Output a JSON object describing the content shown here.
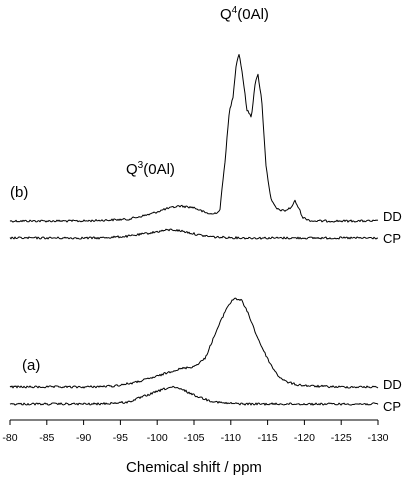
{
  "chart_data": {
    "type": "line",
    "xlabel": "Chemical shift / ppm",
    "ylabel": "",
    "xlim": [
      -80,
      -130
    ],
    "x_ticks": [
      "-80",
      "-85",
      "-90",
      "-95",
      "-100",
      "-105",
      "-110",
      "-115",
      "-120",
      "-125",
      "-130"
    ],
    "grid": false,
    "panels": [
      {
        "label": "(b)",
        "peak_labels": [
          {
            "text": "Q",
            "sup": "3",
            "rest": "(0Al)",
            "x": -102
          },
          {
            "text": "Q",
            "sup": "4",
            "rest": "(0Al)",
            "x": -111
          }
        ],
        "series": [
          {
            "name": "DD",
            "relative_intensity": [
              [
                -80,
                0.0
              ],
              [
                -90,
                0.0
              ],
              [
                -96,
                0.01
              ],
              [
                -99,
                0.04
              ],
              [
                -101,
                0.07
              ],
              [
                -103,
                0.09
              ],
              [
                -105,
                0.08
              ],
              [
                -106.5,
                0.05
              ],
              [
                -107.5,
                0.04
              ],
              [
                -108.5,
                0.06
              ],
              [
                -109.2,
                0.35
              ],
              [
                -109.8,
                0.65
              ],
              [
                -110.3,
                0.74
              ],
              [
                -110.7,
                0.92
              ],
              [
                -111.1,
                1.0
              ],
              [
                -111.5,
                0.9
              ],
              [
                -112.2,
                0.66
              ],
              [
                -112.8,
                0.62
              ],
              [
                -113.3,
                0.82
              ],
              [
                -113.7,
                0.87
              ],
              [
                -114.2,
                0.72
              ],
              [
                -114.8,
                0.32
              ],
              [
                -115.5,
                0.12
              ],
              [
                -116.3,
                0.07
              ],
              [
                -117.3,
                0.06
              ],
              [
                -118.2,
                0.08
              ],
              [
                -118.7,
                0.12
              ],
              [
                -119.2,
                0.08
              ],
              [
                -119.8,
                0.02
              ],
              [
                -121,
                0.0
              ],
              [
                -130,
                0.0
              ]
            ]
          },
          {
            "name": "CP",
            "relative_intensity": [
              [
                -80,
                0.0
              ],
              [
                -92,
                0.0
              ],
              [
                -96,
                0.01
              ],
              [
                -99,
                0.03
              ],
              [
                -101,
                0.045
              ],
              [
                -102,
                0.05
              ],
              [
                -103.5,
                0.04
              ],
              [
                -106,
                0.015
              ],
              [
                -108,
                0.005
              ],
              [
                -112,
                0.0
              ],
              [
                -130,
                0.0
              ]
            ]
          }
        ]
      },
      {
        "label": "(a)",
        "series": [
          {
            "name": "DD",
            "relative_intensity": [
              [
                -80,
                0.0
              ],
              [
                -90,
                0.0
              ],
              [
                -94,
                0.01
              ],
              [
                -97,
                0.05
              ],
              [
                -100,
                0.12
              ],
              [
                -102,
                0.18
              ],
              [
                -103.5,
                0.21
              ],
              [
                -105,
                0.23
              ],
              [
                -106.5,
                0.32
              ],
              [
                -108,
                0.62
              ],
              [
                -109.5,
                0.9
              ],
              [
                -110.5,
                1.0
              ],
              [
                -111.5,
                0.97
              ],
              [
                -112.5,
                0.8
              ],
              [
                -113.5,
                0.58
              ],
              [
                -114.5,
                0.4
              ],
              [
                -115.5,
                0.24
              ],
              [
                -116.5,
                0.12
              ],
              [
                -117.5,
                0.06
              ],
              [
                -119,
                0.025
              ],
              [
                -121,
                0.01
              ],
              [
                -125,
                0.0
              ],
              [
                -130,
                0.0
              ]
            ]
          },
          {
            "name": "CP",
            "relative_intensity": [
              [
                -80,
                0.0
              ],
              [
                -92,
                0.0
              ],
              [
                -96,
                0.02
              ],
              [
                -99,
                0.11
              ],
              [
                -101,
                0.17
              ],
              [
                -102,
                0.19
              ],
              [
                -103.5,
                0.16
              ],
              [
                -105,
                0.1
              ],
              [
                -107,
                0.04
              ],
              [
                -109,
                0.01
              ],
              [
                -112,
                0.0
              ],
              [
                -130,
                0.0
              ]
            ]
          }
        ]
      }
    ]
  }
}
